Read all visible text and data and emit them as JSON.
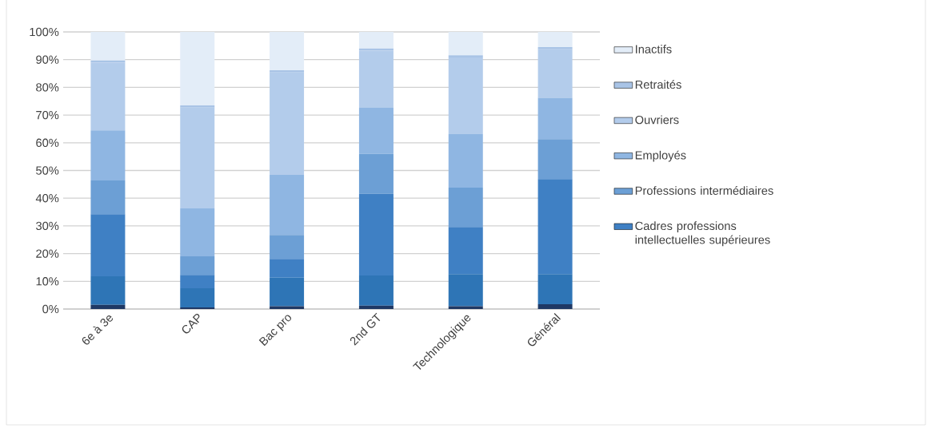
{
  "chart_data": {
    "type": "bar",
    "stacked": true,
    "grid": "y",
    "legend": "right",
    "categories": [
      "6e à 3e",
      "CAP",
      "Bac pro",
      "2nd GT",
      "Technologique",
      "Général"
    ],
    "ylim": [
      0,
      100
    ],
    "yticks": [
      {
        "value": 0,
        "label": "0%"
      },
      {
        "value": 10,
        "label": "10%"
      },
      {
        "value": 20,
        "label": "20%"
      },
      {
        "value": 30,
        "label": "30%"
      },
      {
        "value": 40,
        "label": "40%"
      },
      {
        "value": 50,
        "label": "50%"
      },
      {
        "value": 60,
        "label": "60%"
      },
      {
        "value": 70,
        "label": "70%"
      },
      {
        "value": 80,
        "label": "80%"
      },
      {
        "value": 90,
        "label": "90%"
      },
      {
        "value": 100,
        "label": "100%"
      }
    ],
    "series": [
      {
        "color": "#1f3864",
        "values": [
          1.5,
          0.6,
          1.0,
          1.2,
          1.0,
          1.7
        ]
      },
      {
        "color": "#2e75b6",
        "values": [
          10.3,
          6.9,
          10.3,
          10.9,
          11.6,
          10.9
        ]
      },
      {
        "name": "Cadres professions intellectuelles supérieures",
        "color": "#3f80c4",
        "values": [
          22.4,
          4.8,
          6.8,
          29.5,
          17.0,
          34.3
        ]
      },
      {
        "name": "Professions intermédiaires",
        "color": "#6c9fd5",
        "values": [
          12.2,
          6.7,
          8.6,
          14.4,
          14.2,
          14.4
        ]
      },
      {
        "name": "Employés",
        "color": "#8fb6e2",
        "values": [
          18.1,
          17.3,
          21.7,
          16.6,
          19.3,
          14.9
        ]
      },
      {
        "name": "Ouvriers",
        "color": "#b3cceb",
        "values": [
          24.4,
          36.4,
          37.0,
          20.6,
          27.7,
          17.5
        ]
      },
      {
        "name": "Retraités",
        "color": "#a9c4e6",
        "values": [
          0.8,
          0.8,
          0.8,
          0.8,
          0.8,
          0.8
        ]
      },
      {
        "name": "Inactifs",
        "color": "#e3edf8",
        "values": [
          10.3,
          26.5,
          13.8,
          6.0,
          8.4,
          5.5
        ]
      }
    ]
  }
}
